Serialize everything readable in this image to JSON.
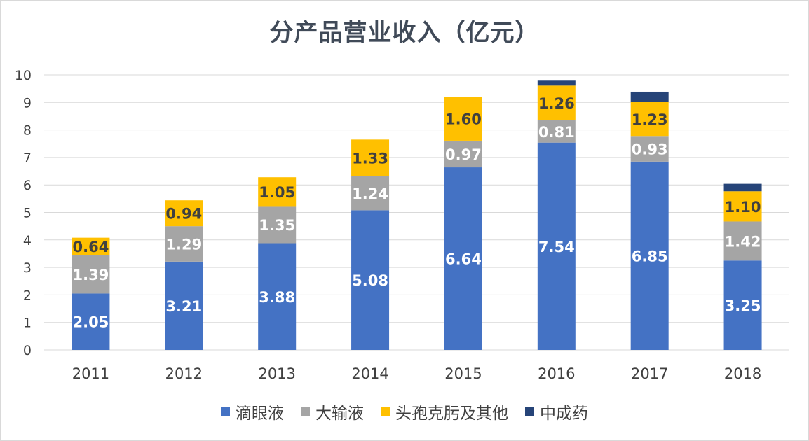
{
  "chart_data": {
    "type": "bar",
    "stacked": true,
    "title": "分产品营业收入（亿元）",
    "categories": [
      "2011",
      "2012",
      "2013",
      "2014",
      "2015",
      "2016",
      "2017",
      "2018"
    ],
    "ylim": [
      0,
      10
    ],
    "yticks": [
      0,
      1,
      2,
      3,
      4,
      5,
      6,
      7,
      8,
      9,
      10
    ],
    "grid": true,
    "legend_position": "bottom",
    "series": [
      {
        "name": "滴眼液",
        "color": "#4472c4",
        "label_color": "#ffffff",
        "values": [
          2.05,
          3.21,
          3.88,
          5.08,
          6.64,
          7.54,
          6.85,
          3.25
        ],
        "labels": [
          "2.05",
          "3.21",
          "3.88",
          "5.08",
          "6.64",
          "7.54",
          "6.85",
          "3.25"
        ]
      },
      {
        "name": "大输液",
        "color": "#a5a5a5",
        "label_color": "#ffffff",
        "values": [
          1.39,
          1.29,
          1.35,
          1.24,
          0.97,
          0.81,
          0.93,
          1.42
        ],
        "labels": [
          "1.39",
          "1.29",
          "1.35",
          "1.24",
          "0.97",
          "0.81",
          "0.93",
          "1.42"
        ]
      },
      {
        "name": "头孢克肟及其他",
        "color": "#ffc000",
        "label_color": "#404040",
        "values": [
          0.64,
          0.94,
          1.05,
          1.33,
          1.6,
          1.26,
          1.23,
          1.1
        ],
        "labels": [
          "0.64",
          "0.94",
          "1.05",
          "1.33",
          "1.60",
          "1.26",
          "1.23",
          "1.10"
        ]
      },
      {
        "name": "中成药",
        "color": "#264478",
        "label_color": "#ffffff",
        "values": [
          0,
          0,
          0,
          0,
          0,
          0.18,
          0.38,
          0.27
        ],
        "labels": [
          "",
          "",
          "",
          "",
          "",
          "",
          "",
          ""
        ]
      }
    ]
  }
}
